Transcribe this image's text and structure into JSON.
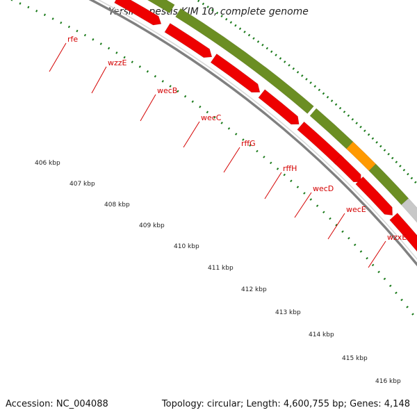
{
  "title": "Yersinia pestis KIM 10, complete genome",
  "footer": {
    "accession": "Accession: NC_004088",
    "summary": "Topology: circular; Length: 4,600,755 bp; Genes: 4,148"
  },
  "colors": {
    "cds_green": "#6b8e23",
    "cds_orange": "#ff9900",
    "cds_gray": "#c8c8c8",
    "gene_red": "#ee0000",
    "backbone": "#808080",
    "dots": "#1a7a1a",
    "label": "#d40000"
  },
  "genes": [
    {
      "name": "rfe"
    },
    {
      "name": "wzzE"
    },
    {
      "name": "wecB"
    },
    {
      "name": "wecC"
    },
    {
      "name": "rffG"
    },
    {
      "name": "rffH"
    },
    {
      "name": "wecD"
    },
    {
      "name": "wecE"
    },
    {
      "name": "wzxE"
    }
  ],
  "ticks": [
    {
      "label": "406 kbp"
    },
    {
      "label": "407 kbp"
    },
    {
      "label": "408 kbp"
    },
    {
      "label": "409 kbp"
    },
    {
      "label": "410 kbp"
    },
    {
      "label": "411 kbp"
    },
    {
      "label": "412 kbp"
    },
    {
      "label": "413 kbp"
    },
    {
      "label": "414 kbp"
    },
    {
      "label": "415 kbp"
    },
    {
      "label": "416 kbp"
    }
  ]
}
